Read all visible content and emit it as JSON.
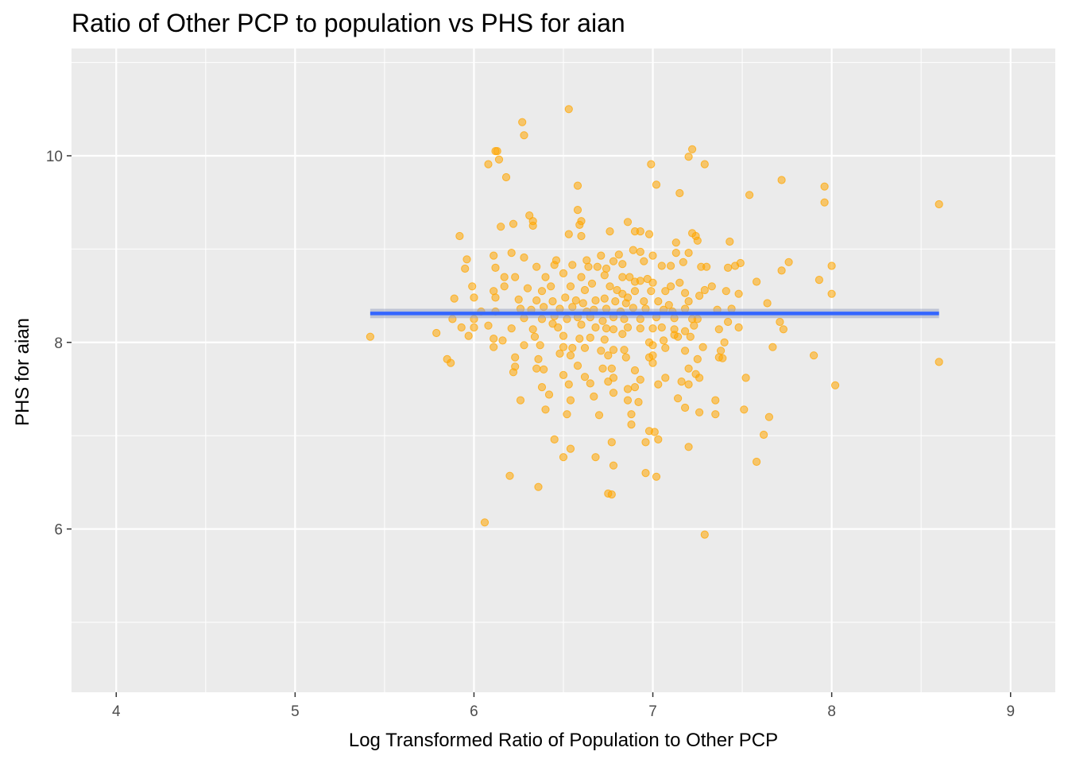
{
  "chart_data": {
    "type": "scatter",
    "title": "Ratio of Other PCP to population vs PHS for aian",
    "xlabel": "Log Transformed Ratio of Population to Other PCP",
    "ylabel": "PHS for aian",
    "xlim": [
      3.75,
      9.25
    ],
    "ylim": [
      4.25,
      11.15
    ],
    "x_ticks": [
      4,
      5,
      6,
      7,
      8,
      9
    ],
    "y_ticks": [
      6,
      8,
      10
    ],
    "grid": true,
    "colors": {
      "panel": "#ebebeb",
      "grid": "#ffffff",
      "points": "#ffa500",
      "trend": "#3366ff",
      "band": "#99a4c2"
    },
    "trend_line": {
      "x": [
        5.42,
        8.6
      ],
      "y": [
        8.31,
        8.31
      ],
      "ci": [
        8.26,
        8.36
      ]
    },
    "points": [
      [
        6.53,
        10.5
      ],
      [
        6.27,
        10.36
      ],
      [
        6.28,
        10.22
      ],
      [
        6.12,
        10.05
      ],
      [
        6.13,
        10.05
      ],
      [
        6.14,
        9.96
      ],
      [
        6.08,
        9.91
      ],
      [
        6.18,
        9.77
      ],
      [
        7.22,
        10.07
      ],
      [
        7.2,
        9.99
      ],
      [
        7.29,
        9.91
      ],
      [
        6.99,
        9.91
      ],
      [
        7.02,
        9.69
      ],
      [
        7.15,
        9.6
      ],
      [
        7.54,
        9.58
      ],
      [
        7.72,
        9.74
      ],
      [
        7.96,
        9.67
      ],
      [
        7.96,
        9.5
      ],
      [
        8.6,
        9.48
      ],
      [
        6.58,
        9.68
      ],
      [
        6.58,
        9.42
      ],
      [
        6.6,
        9.3
      ],
      [
        6.59,
        9.26
      ],
      [
        6.33,
        9.3
      ],
      [
        6.31,
        9.36
      ],
      [
        6.33,
        9.25
      ],
      [
        6.15,
        9.24
      ],
      [
        6.22,
        9.27
      ],
      [
        6.53,
        9.16
      ],
      [
        6.6,
        9.14
      ],
      [
        6.76,
        9.19
      ],
      [
        6.86,
        9.29
      ],
      [
        6.9,
        9.19
      ],
      [
        6.93,
        9.19
      ],
      [
        6.98,
        9.16
      ],
      [
        7.13,
        9.07
      ],
      [
        7.22,
        9.17
      ],
      [
        7.24,
        9.14
      ],
      [
        7.25,
        9.09
      ],
      [
        7.43,
        9.08
      ],
      [
        5.92,
        9.14
      ],
      [
        5.96,
        8.89
      ],
      [
        6.11,
        8.93
      ],
      [
        6.21,
        8.96
      ],
      [
        6.28,
        8.91
      ],
      [
        6.46,
        8.88
      ],
      [
        6.63,
        8.88
      ],
      [
        6.71,
        8.93
      ],
      [
        6.78,
        8.87
      ],
      [
        6.81,
        8.94
      ],
      [
        6.89,
        8.99
      ],
      [
        6.93,
        8.97
      ],
      [
        7.0,
        8.93
      ],
      [
        7.13,
        8.96
      ],
      [
        7.2,
        8.96
      ],
      [
        5.95,
        8.79
      ],
      [
        6.12,
        8.8
      ],
      [
        6.35,
        8.81
      ],
      [
        6.45,
        8.83
      ],
      [
        6.55,
        8.83
      ],
      [
        6.64,
        8.81
      ],
      [
        6.69,
        8.81
      ],
      [
        6.74,
        8.79
      ],
      [
        6.83,
        8.84
      ],
      [
        6.95,
        8.87
      ],
      [
        7.05,
        8.82
      ],
      [
        7.1,
        8.82
      ],
      [
        7.17,
        8.86
      ],
      [
        7.27,
        8.81
      ],
      [
        7.3,
        8.81
      ],
      [
        7.42,
        8.8
      ],
      [
        7.46,
        8.82
      ],
      [
        7.49,
        8.85
      ],
      [
        7.72,
        8.77
      ],
      [
        7.76,
        8.86
      ],
      [
        8.0,
        8.82
      ],
      [
        6.17,
        8.7
      ],
      [
        6.23,
        8.7
      ],
      [
        6.4,
        8.7
      ],
      [
        6.5,
        8.74
      ],
      [
        6.6,
        8.7
      ],
      [
        6.73,
        8.72
      ],
      [
        6.83,
        8.7
      ],
      [
        6.87,
        8.7
      ],
      [
        6.9,
        8.65
      ],
      [
        6.93,
        8.66
      ],
      [
        6.97,
        8.68
      ],
      [
        7.0,
        8.64
      ],
      [
        7.1,
        8.6
      ],
      [
        7.15,
        8.64
      ],
      [
        7.33,
        8.6
      ],
      [
        7.41,
        8.55
      ],
      [
        7.48,
        8.52
      ],
      [
        7.58,
        8.65
      ],
      [
        7.93,
        8.67
      ],
      [
        5.99,
        8.6
      ],
      [
        6.11,
        8.55
      ],
      [
        6.17,
        8.6
      ],
      [
        6.3,
        8.58
      ],
      [
        6.38,
        8.55
      ],
      [
        6.43,
        8.6
      ],
      [
        6.54,
        8.6
      ],
      [
        6.62,
        8.56
      ],
      [
        6.66,
        8.63
      ],
      [
        6.76,
        8.6
      ],
      [
        6.8,
        8.56
      ],
      [
        6.83,
        8.52
      ],
      [
        6.86,
        8.48
      ],
      [
        6.9,
        8.55
      ],
      [
        6.99,
        8.55
      ],
      [
        7.07,
        8.55
      ],
      [
        7.18,
        8.53
      ],
      [
        7.26,
        8.5
      ],
      [
        7.29,
        8.56
      ],
      [
        8.0,
        8.52
      ],
      [
        5.89,
        8.47
      ],
      [
        6.0,
        8.48
      ],
      [
        6.12,
        8.48
      ],
      [
        6.25,
        8.46
      ],
      [
        6.35,
        8.45
      ],
      [
        6.44,
        8.44
      ],
      [
        6.51,
        8.48
      ],
      [
        6.57,
        8.45
      ],
      [
        6.61,
        8.42
      ],
      [
        6.68,
        8.45
      ],
      [
        6.73,
        8.47
      ],
      [
        6.79,
        8.44
      ],
      [
        6.85,
        8.42
      ],
      [
        6.95,
        8.44
      ],
      [
        7.03,
        8.44
      ],
      [
        7.09,
        8.4
      ],
      [
        7.2,
        8.44
      ],
      [
        7.64,
        8.42
      ],
      [
        6.04,
        8.33
      ],
      [
        6.12,
        8.33
      ],
      [
        6.26,
        8.36
      ],
      [
        6.32,
        8.35
      ],
      [
        6.39,
        8.38
      ],
      [
        6.48,
        8.36
      ],
      [
        6.55,
        8.38
      ],
      [
        6.63,
        8.33
      ],
      [
        6.67,
        8.35
      ],
      [
        6.74,
        8.36
      ],
      [
        6.82,
        8.33
      ],
      [
        6.89,
        8.37
      ],
      [
        6.96,
        8.36
      ],
      [
        7.06,
        8.35
      ],
      [
        7.11,
        8.33
      ],
      [
        7.18,
        8.36
      ],
      [
        7.36,
        8.35
      ],
      [
        7.44,
        8.36
      ],
      [
        5.88,
        8.25
      ],
      [
        6.0,
        8.25
      ],
      [
        6.28,
        8.26
      ],
      [
        6.38,
        8.25
      ],
      [
        6.45,
        8.28
      ],
      [
        6.52,
        8.25
      ],
      [
        6.58,
        8.27
      ],
      [
        6.65,
        8.27
      ],
      [
        6.72,
        8.23
      ],
      [
        6.78,
        8.27
      ],
      [
        6.84,
        8.25
      ],
      [
        6.93,
        8.25
      ],
      [
        7.02,
        8.27
      ],
      [
        7.12,
        8.26
      ],
      [
        7.22,
        8.25
      ],
      [
        7.25,
        8.25
      ],
      [
        7.42,
        8.22
      ],
      [
        7.71,
        8.22
      ],
      [
        5.93,
        8.16
      ],
      [
        6.0,
        8.16
      ],
      [
        6.08,
        8.18
      ],
      [
        6.21,
        8.15
      ],
      [
        6.33,
        8.14
      ],
      [
        6.44,
        8.2
      ],
      [
        6.47,
        8.16
      ],
      [
        6.6,
        8.19
      ],
      [
        6.68,
        8.16
      ],
      [
        6.74,
        8.15
      ],
      [
        6.78,
        8.14
      ],
      [
        6.86,
        8.16
      ],
      [
        6.93,
        8.15
      ],
      [
        7.0,
        8.15
      ],
      [
        7.05,
        8.16
      ],
      [
        7.12,
        8.14
      ],
      [
        7.18,
        8.12
      ],
      [
        7.23,
        8.18
      ],
      [
        7.37,
        8.14
      ],
      [
        7.48,
        8.16
      ],
      [
        7.73,
        8.14
      ],
      [
        5.42,
        8.06
      ],
      [
        5.79,
        8.1
      ],
      [
        5.97,
        8.07
      ],
      [
        6.11,
        8.04
      ],
      [
        6.16,
        8.02
      ],
      [
        6.34,
        8.06
      ],
      [
        6.5,
        8.07
      ],
      [
        6.59,
        8.04
      ],
      [
        6.65,
        8.05
      ],
      [
        6.73,
        8.03
      ],
      [
        6.83,
        8.09
      ],
      [
        6.98,
        8.0
      ],
      [
        7.06,
        8.02
      ],
      [
        7.12,
        8.08
      ],
      [
        7.14,
        8.06
      ],
      [
        7.21,
        8.06
      ],
      [
        7.4,
        8.0
      ],
      [
        6.11,
        7.95
      ],
      [
        6.28,
        7.97
      ],
      [
        6.37,
        7.97
      ],
      [
        6.5,
        7.95
      ],
      [
        6.55,
        7.94
      ],
      [
        6.62,
        7.94
      ],
      [
        6.71,
        7.91
      ],
      [
        6.78,
        7.92
      ],
      [
        6.84,
        7.92
      ],
      [
        7.0,
        7.97
      ],
      [
        7.07,
        7.94
      ],
      [
        7.18,
        7.91
      ],
      [
        7.28,
        7.95
      ],
      [
        7.38,
        7.91
      ],
      [
        7.67,
        7.95
      ],
      [
        5.85,
        7.82
      ],
      [
        5.87,
        7.78
      ],
      [
        6.23,
        7.84
      ],
      [
        6.36,
        7.82
      ],
      [
        6.48,
        7.88
      ],
      [
        6.54,
        7.86
      ],
      [
        6.75,
        7.86
      ],
      [
        6.85,
        7.84
      ],
      [
        6.98,
        7.84
      ],
      [
        7.0,
        7.86
      ],
      [
        7.25,
        7.82
      ],
      [
        7.37,
        7.84
      ],
      [
        7.39,
        7.83
      ],
      [
        7.9,
        7.86
      ],
      [
        8.6,
        7.79
      ],
      [
        6.23,
        7.74
      ],
      [
        6.35,
        7.72
      ],
      [
        6.39,
        7.71
      ],
      [
        6.58,
        7.75
      ],
      [
        6.72,
        7.72
      ],
      [
        6.77,
        7.72
      ],
      [
        6.9,
        7.7
      ],
      [
        7.0,
        7.78
      ],
      [
        7.2,
        7.72
      ],
      [
        7.24,
        7.66
      ],
      [
        6.22,
        7.68
      ],
      [
        6.5,
        7.65
      ],
      [
        6.62,
        7.63
      ],
      [
        6.78,
        7.62
      ],
      [
        6.93,
        7.6
      ],
      [
        7.07,
        7.62
      ],
      [
        7.16,
        7.58
      ],
      [
        7.26,
        7.62
      ],
      [
        7.52,
        7.62
      ],
      [
        6.38,
        7.52
      ],
      [
        6.53,
        7.55
      ],
      [
        6.65,
        7.56
      ],
      [
        6.75,
        7.58
      ],
      [
        6.86,
        7.5
      ],
      [
        6.9,
        7.52
      ],
      [
        7.03,
        7.55
      ],
      [
        7.2,
        7.55
      ],
      [
        7.35,
        7.38
      ],
      [
        8.02,
        7.54
      ],
      [
        6.26,
        7.38
      ],
      [
        6.42,
        7.44
      ],
      [
        6.54,
        7.38
      ],
      [
        6.67,
        7.42
      ],
      [
        6.78,
        7.46
      ],
      [
        6.86,
        7.38
      ],
      [
        6.92,
        7.36
      ],
      [
        7.14,
        7.4
      ],
      [
        7.18,
        7.3
      ],
      [
        6.4,
        7.28
      ],
      [
        6.52,
        7.23
      ],
      [
        6.7,
        7.22
      ],
      [
        6.88,
        7.23
      ],
      [
        7.26,
        7.25
      ],
      [
        7.35,
        7.23
      ],
      [
        7.51,
        7.28
      ],
      [
        7.65,
        7.2
      ],
      [
        6.88,
        7.12
      ],
      [
        6.98,
        7.05
      ],
      [
        7.01,
        7.04
      ],
      [
        7.62,
        7.01
      ],
      [
        6.45,
        6.96
      ],
      [
        6.77,
        6.93
      ],
      [
        6.96,
        6.93
      ],
      [
        7.03,
        6.96
      ],
      [
        7.2,
        6.88
      ],
      [
        6.54,
        6.86
      ],
      [
        6.5,
        6.77
      ],
      [
        6.68,
        6.77
      ],
      [
        6.78,
        6.68
      ],
      [
        6.96,
        6.6
      ],
      [
        7.02,
        6.56
      ],
      [
        7.58,
        6.72
      ],
      [
        6.2,
        6.57
      ],
      [
        6.36,
        6.45
      ],
      [
        6.75,
        6.38
      ],
      [
        6.77,
        6.37
      ],
      [
        6.06,
        6.07
      ],
      [
        7.29,
        5.94
      ]
    ]
  }
}
